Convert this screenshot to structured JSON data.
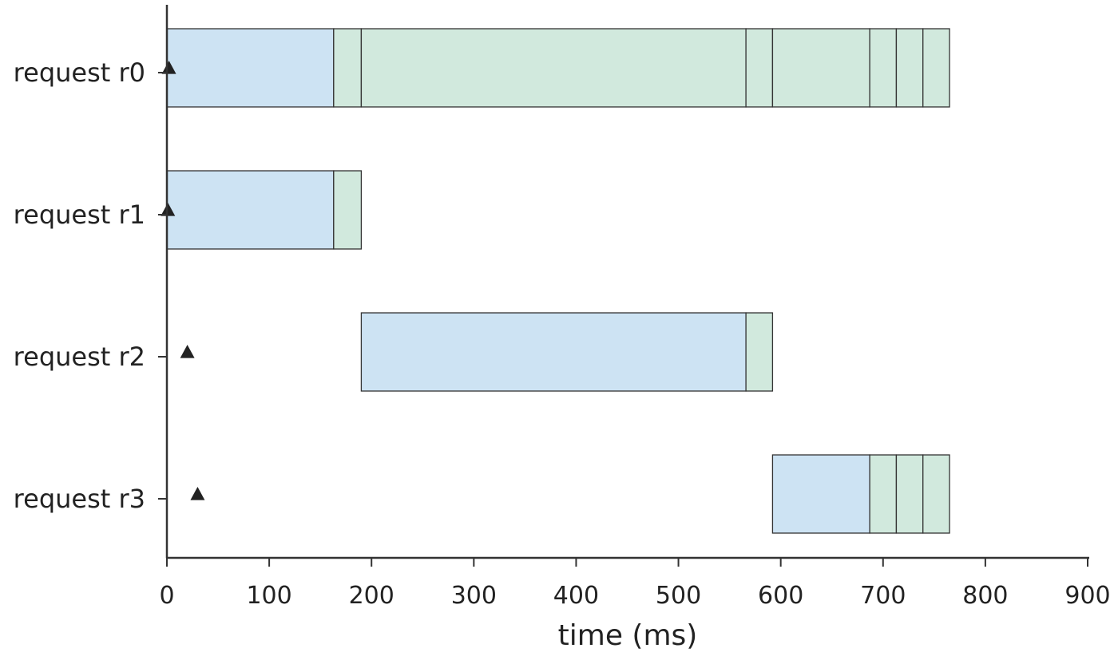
{
  "chart_data": {
    "type": "gantt",
    "xlabel": "time (ms)",
    "xlim": [
      0,
      900
    ],
    "xticks": [
      0,
      100,
      200,
      300,
      400,
      500,
      600,
      700,
      800,
      900
    ],
    "grid": false,
    "legend": false,
    "colors": {
      "blue_segment": "#cde3f3",
      "green_segment": "#d1e9dd",
      "edge": "#333333",
      "marker": "#222222"
    },
    "rows": [
      {
        "label": "request r0",
        "arrival": 2,
        "segments": [
          {
            "start": 0,
            "end": 163,
            "color": "blue"
          },
          {
            "start": 163,
            "end": 190,
            "color": "green"
          },
          {
            "start": 190,
            "end": 566,
            "color": "green"
          },
          {
            "start": 566,
            "end": 592,
            "color": "green"
          },
          {
            "start": 592,
            "end": 687,
            "color": "green"
          },
          {
            "start": 687,
            "end": 713,
            "color": "green"
          },
          {
            "start": 713,
            "end": 739,
            "color": "green"
          },
          {
            "start": 739,
            "end": 765,
            "color": "green"
          }
        ]
      },
      {
        "label": "request r1",
        "arrival": 1,
        "segments": [
          {
            "start": 0,
            "end": 163,
            "color": "blue"
          },
          {
            "start": 163,
            "end": 190,
            "color": "green"
          }
        ]
      },
      {
        "label": "request r2",
        "arrival": 20,
        "segments": [
          {
            "start": 190,
            "end": 566,
            "color": "blue"
          },
          {
            "start": 566,
            "end": 592,
            "color": "green"
          }
        ]
      },
      {
        "label": "request r3",
        "arrival": 30,
        "segments": [
          {
            "start": 592,
            "end": 687,
            "color": "blue"
          },
          {
            "start": 687,
            "end": 713,
            "color": "green"
          },
          {
            "start": 713,
            "end": 739,
            "color": "green"
          },
          {
            "start": 739,
            "end": 765,
            "color": "green"
          }
        ]
      }
    ]
  }
}
